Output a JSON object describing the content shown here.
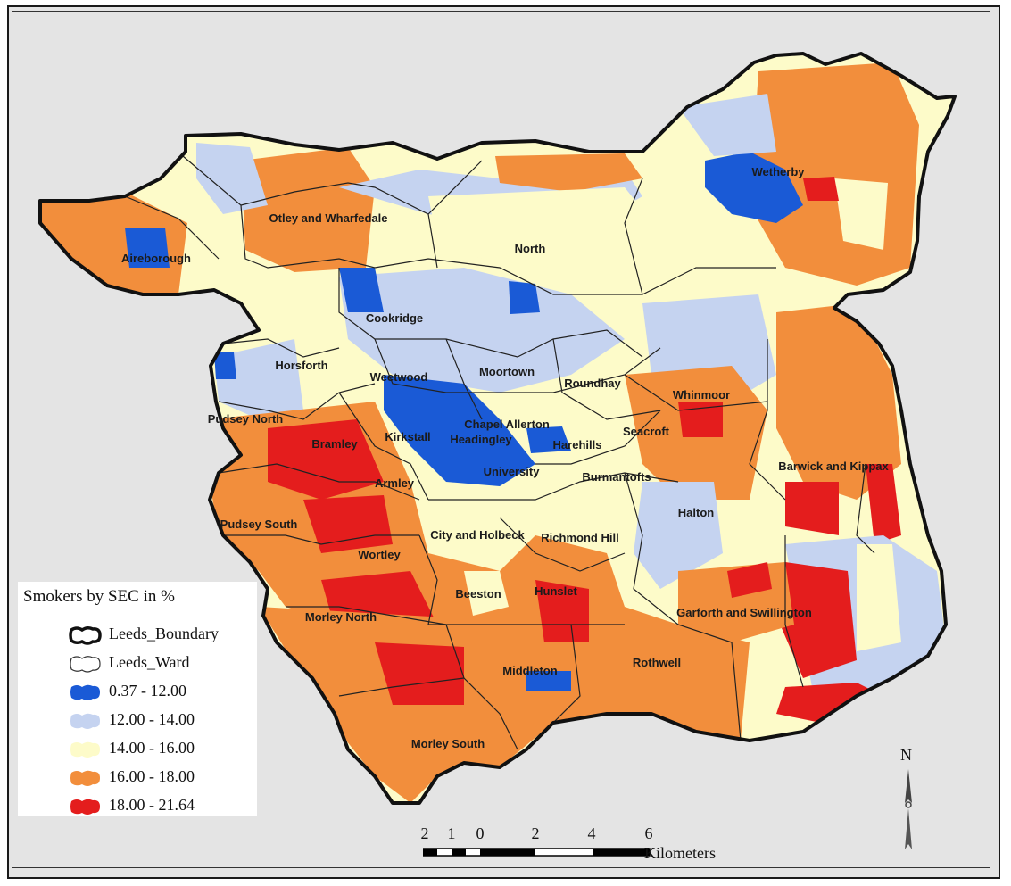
{
  "map": {
    "wards": [
      {
        "name": "Otley and Wharfedale"
      },
      {
        "name": "Wetherby"
      },
      {
        "name": "Aireborough"
      },
      {
        "name": "North"
      },
      {
        "name": "Cookridge"
      },
      {
        "name": "Horsforth"
      },
      {
        "name": "Weetwood"
      },
      {
        "name": "Moortown"
      },
      {
        "name": "Roundhay"
      },
      {
        "name": "Whinmoor"
      },
      {
        "name": "Pudsey North"
      },
      {
        "name": "Chapel Allerton"
      },
      {
        "name": "Kirkstall"
      },
      {
        "name": "Headingley"
      },
      {
        "name": "Harehills"
      },
      {
        "name": "Seacroft"
      },
      {
        "name": "Bramley"
      },
      {
        "name": "University"
      },
      {
        "name": "Burmantofts"
      },
      {
        "name": "Barwick and Kippax"
      },
      {
        "name": "Armley"
      },
      {
        "name": "Halton"
      },
      {
        "name": "Pudsey South"
      },
      {
        "name": "City and Holbeck"
      },
      {
        "name": "Richmond Hill"
      },
      {
        "name": "Wortley"
      },
      {
        "name": "Beeston"
      },
      {
        "name": "Hunslet"
      },
      {
        "name": "Garforth and Swillington"
      },
      {
        "name": "Morley North"
      },
      {
        "name": "Middleton"
      },
      {
        "name": "Rothwell"
      },
      {
        "name": "Morley South"
      }
    ],
    "colors": {
      "class_1": "#1a5ad6",
      "class_2": "#c5d3f0",
      "class_3": "#fdfbc9",
      "class_4": "#f28e3c",
      "class_5": "#e41d1d",
      "boundary": "#111111",
      "ward_line": "#222222"
    }
  },
  "legend": {
    "title": "Smokers by SEC in %",
    "items": [
      {
        "label": "Leeds_Boundary",
        "symbol": "boundary-outline"
      },
      {
        "label": "Leeds_Ward",
        "symbol": "ward-outline"
      },
      {
        "label": "0.37 - 12.00",
        "color": "#1a5ad6"
      },
      {
        "label": "12.00 - 14.00",
        "color": "#c5d3f0"
      },
      {
        "label": "14.00 - 16.00",
        "color": "#fdfbc9"
      },
      {
        "label": "16.00 - 18.00",
        "color": "#f28e3c"
      },
      {
        "label": "18.00 - 21.64",
        "color": "#e41d1d"
      }
    ]
  },
  "north_arrow": {
    "label": "N"
  },
  "scale_bar": {
    "ticks": [
      "2",
      "1",
      "0",
      "2",
      "4",
      "6"
    ],
    "units": "Kilometers"
  }
}
